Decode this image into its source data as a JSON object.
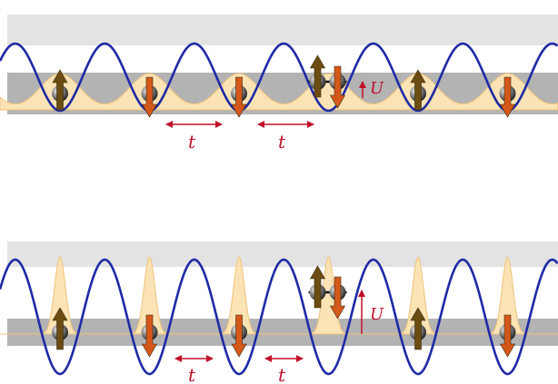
{
  "colors": {
    "band_light": "#e3e3e3",
    "band_dark": "#b3b3b3",
    "lattice": "#1f2aa6",
    "wavefunction_fill": "#fbe3b5",
    "wavefunction_stroke": "#f2c27a",
    "spin_up": "#6b4c12",
    "spin_down": "#d4581a",
    "annotation": "#c0102a",
    "atom": "#444444"
  },
  "panels": [
    {
      "name": "shallow-lattice",
      "hopping_labels": [
        "t",
        "t"
      ],
      "interaction_label": "U",
      "sites": [
        {
          "spins": [
            "up"
          ]
        },
        {
          "spins": [
            "down"
          ]
        },
        {
          "spins": [
            "down"
          ]
        },
        {
          "spins": [
            "up",
            "down"
          ]
        },
        {
          "spins": [
            "up"
          ]
        },
        {
          "spins": [
            "down"
          ]
        }
      ]
    },
    {
      "name": "deep-lattice",
      "hopping_labels": [
        "t",
        "t"
      ],
      "interaction_label": "U",
      "sites": [
        {
          "spins": [
            "up"
          ]
        },
        {
          "spins": [
            "down"
          ]
        },
        {
          "spins": [
            "down"
          ]
        },
        {
          "spins": [
            "up",
            "down"
          ]
        },
        {
          "spins": [
            "up"
          ]
        },
        {
          "spins": [
            "down"
          ]
        }
      ]
    }
  ]
}
